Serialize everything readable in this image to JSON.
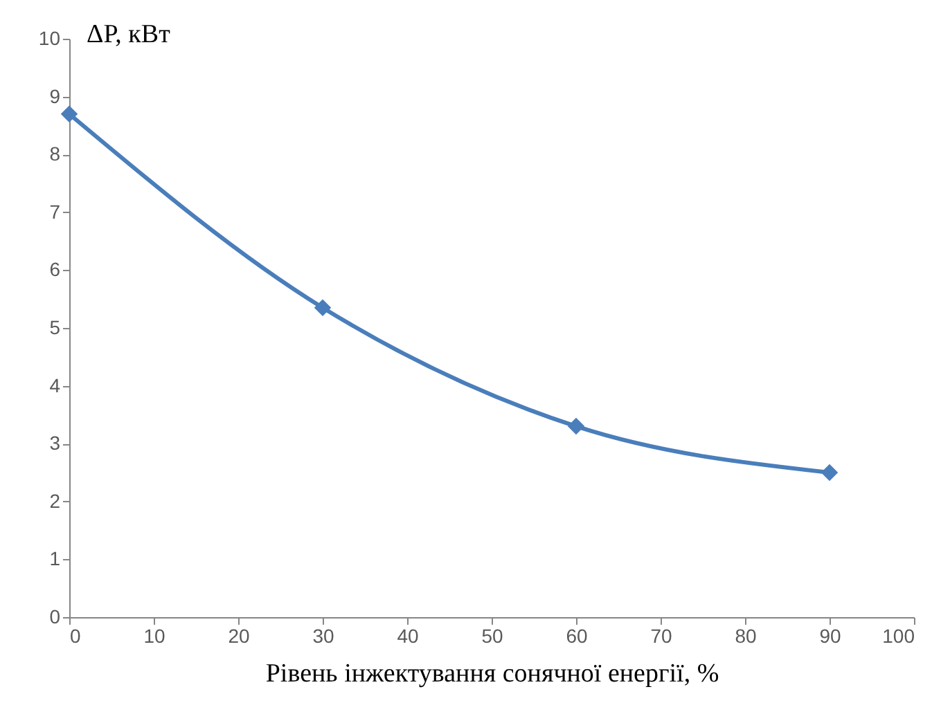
{
  "chart_data": {
    "type": "line",
    "xlabel": "Рівень інжектування сонячної енергії, %",
    "ylabel": "ΔP, кВт",
    "x": [
      0,
      30,
      60,
      90
    ],
    "series": [
      {
        "color": "#4a7ebb",
        "values": [
          8.7,
          5.35,
          3.3,
          2.5
        ]
      }
    ],
    "xlim": [
      0,
      100
    ],
    "xticks": [
      0,
      10,
      20,
      30,
      40,
      50,
      60,
      70,
      80,
      90,
      100
    ],
    "ylim": [
      0,
      10
    ],
    "yticks": [
      0,
      1,
      2,
      3,
      4,
      5,
      6,
      7,
      8,
      9,
      10
    ],
    "grid": false,
    "legend": false,
    "marker": "diamond",
    "line_style": "solid"
  }
}
